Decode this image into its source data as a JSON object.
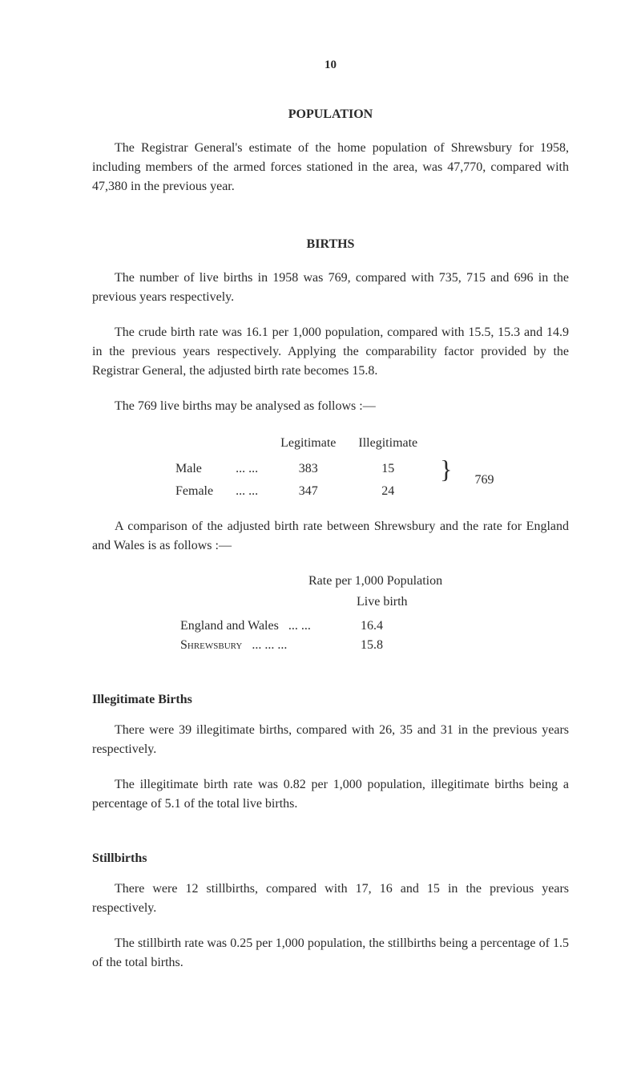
{
  "pageNumber": "10",
  "sections": {
    "population": {
      "heading": "POPULATION",
      "para1": "The Registrar General's estimate of the home population of Shrewsbury for 1958, including members of the armed forces stationed in the area, was 47,770, compared with 47,380 in the previous year."
    },
    "births": {
      "heading": "BIRTHS",
      "para1": "The number of live births in 1958 was 769, compared with 735, 715 and 696 in the previous years respectively.",
      "para2": "The crude birth rate was 16.1 per 1,000 population, compared with 15.5, 15.3 and 14.9 in the previous years respectively. Applying the comparability factor provided by the Registrar General, the adjusted birth rate becomes 15.8.",
      "para3": "The 769 live births may be analysed as follows :—",
      "table": {
        "col1": "Legitimate",
        "col2": "Illegitimate",
        "row1Label": "Male",
        "row1Dots": "...      ...",
        "row1Val1": "383",
        "row1Val2": "15",
        "row2Label": "Female",
        "row2Dots": "...      ...",
        "row2Val1": "347",
        "row2Val2": "24",
        "total": "769"
      },
      "para4": "A comparison of the adjusted birth rate between Shrewsbury and the rate for England and Wales is as follows :—",
      "rateHeader": "Rate per 1,000 Population",
      "rateSubheader": "Live birth",
      "rate1Label": "England and Wales",
      "rate1Dots": "...      ...",
      "rate1Value": "16.4",
      "rate2Label": "Shrewsbury",
      "rate2Dots": "...      ...      ...",
      "rate2Value": "15.8"
    },
    "illegitimate": {
      "heading": "Illegitimate Births",
      "para1": "There were 39 illegitimate births, compared with 26, 35 and 31 in the previous years respectively.",
      "para2": "The illegitimate birth rate was 0.82 per 1,000 population, illegitimate births being a percentage of 5.1 of the total live births."
    },
    "stillbirths": {
      "heading": "Stillbirths",
      "para1": "There were 12 stillbirths, compared with 17, 16 and 15 in the previous years respectively.",
      "para2": "The stillbirth rate was 0.25 per 1,000 population, the stillbirths being a percentage of 1.5 of the total births."
    }
  }
}
